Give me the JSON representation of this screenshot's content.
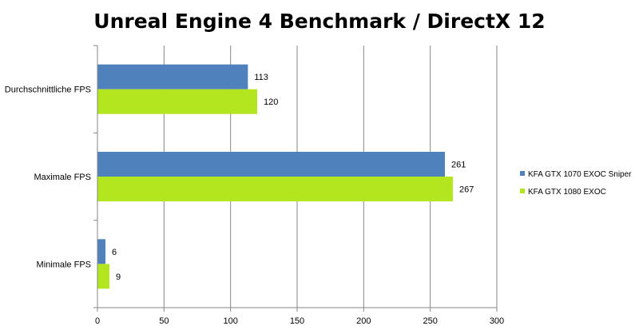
{
  "chart_data": {
    "type": "bar",
    "orientation": "horizontal",
    "title": "Unreal Engine 4 Benchmark / DirectX 12",
    "categories": [
      "Durchschnittliche FPS",
      "Maximale FPS",
      "Minimale FPS"
    ],
    "series": [
      {
        "name": "KFA GTX 1070 EXOC Sniper",
        "values": [
          113,
          261,
          6
        ],
        "color": "#4f81bd"
      },
      {
        "name": "KFA GTX 1080 EXOC",
        "values": [
          120,
          267,
          9
        ],
        "color": "#b3e61e"
      }
    ],
    "xlim": [
      0,
      300
    ],
    "xticks": [
      0,
      50,
      100,
      150,
      200,
      250,
      300
    ],
    "grid": true,
    "legend": "right"
  }
}
